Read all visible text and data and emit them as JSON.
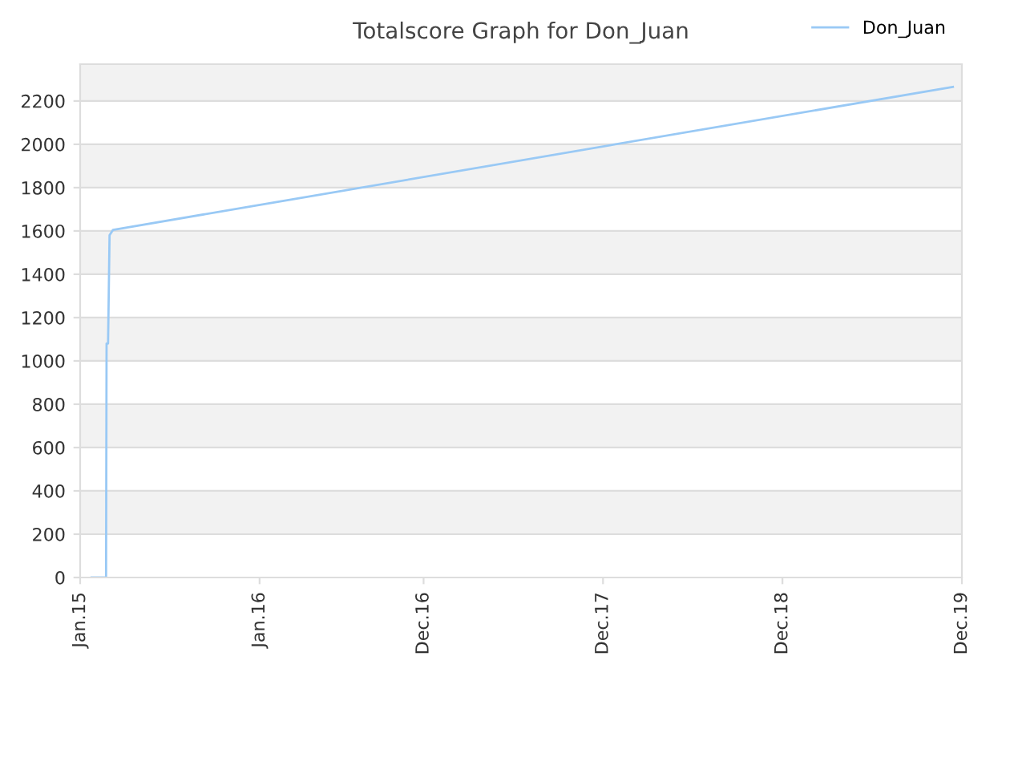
{
  "chart_data": {
    "type": "line",
    "title": "Totalscore Graph for Don_Juan",
    "series": [
      {
        "name": "Don_Juan",
        "color": "#99c9f5",
        "x": [
          "2015-02-23",
          "2015-03-24",
          "2015-03-25",
          "2015-03-28",
          "2015-03-31",
          "2015-04-07",
          "2019-11-17"
        ],
        "values": [
          0,
          0,
          1080,
          1080,
          1580,
          1605,
          2265
        ]
      }
    ],
    "xlim": [
      "2015-01-31",
      "2019-12-05"
    ],
    "xticks": [
      {
        "value": "2015-01-31",
        "label": "Jan.15"
      },
      {
        "value": "2016-01-26",
        "label": "Jan.16"
      },
      {
        "value": "2016-12-20",
        "label": "Dec.16"
      },
      {
        "value": "2017-12-15",
        "label": "Dec.17"
      },
      {
        "value": "2018-12-10",
        "label": "Dec.18"
      },
      {
        "value": "2019-12-05",
        "label": "Dec.19"
      }
    ],
    "ylim": [
      0,
      2370
    ],
    "yticks": [
      0,
      200,
      400,
      600,
      800,
      1000,
      1200,
      1400,
      1600,
      1800,
      2000,
      2200
    ],
    "grid": "y",
    "legend": "top right",
    "line_style": "solid",
    "marker": "none"
  }
}
